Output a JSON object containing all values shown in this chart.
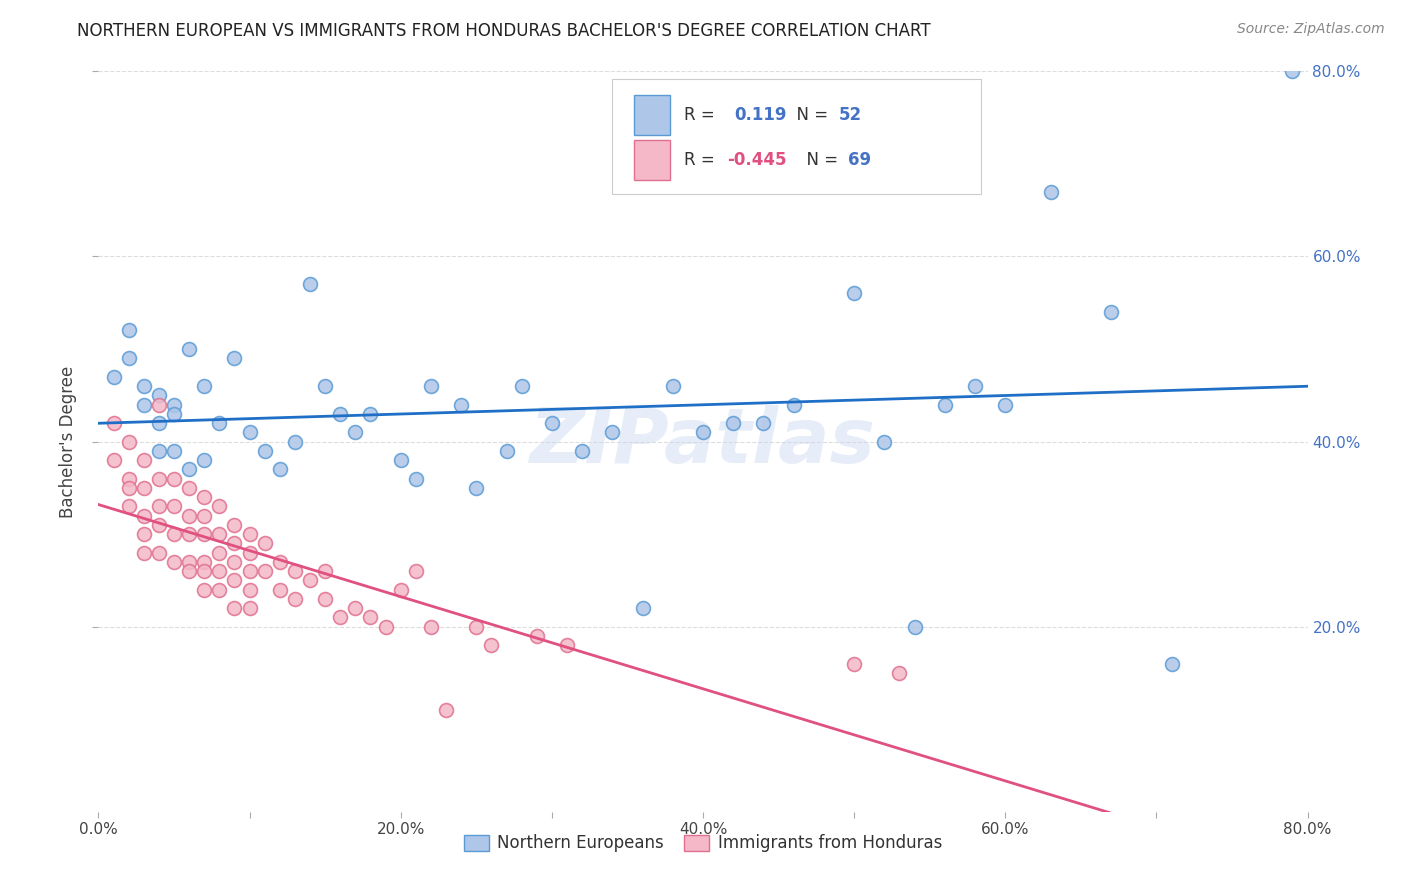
{
  "title": "NORTHERN EUROPEAN VS IMMIGRANTS FROM HONDURAS BACHELOR'S DEGREE CORRELATION CHART",
  "source": "Source: ZipAtlas.com",
  "ylabel": "Bachelor's Degree",
  "watermark": "ZIPatlas",
  "xlim": [
    0.0,
    0.8
  ],
  "ylim": [
    0.0,
    0.8
  ],
  "xtick_labels": [
    "0.0%",
    "",
    "20.0%",
    "",
    "40.0%",
    "",
    "60.0%",
    "",
    "80.0%"
  ],
  "xtick_vals": [
    0.0,
    0.1,
    0.2,
    0.3,
    0.4,
    0.5,
    0.6,
    0.7,
    0.8
  ],
  "ytick_labels": [
    "20.0%",
    "40.0%",
    "60.0%",
    "80.0%"
  ],
  "ytick_vals": [
    0.2,
    0.4,
    0.6,
    0.8
  ],
  "series1_color": "#aec6e8",
  "series1_edge_color": "#5b9bd5",
  "series2_color": "#f4b8c8",
  "series2_edge_color": "#e07090",
  "trend1_color": "#1f6fc6",
  "trend2_color": "#e05080",
  "legend_label1": "Northern Europeans",
  "legend_label2": "Immigrants from Honduras",
  "R1": 0.119,
  "N1": 52,
  "R2": -0.445,
  "N2": 69,
  "series1_x": [
    0.01,
    0.02,
    0.02,
    0.03,
    0.03,
    0.04,
    0.04,
    0.04,
    0.05,
    0.05,
    0.05,
    0.06,
    0.06,
    0.07,
    0.07,
    0.08,
    0.09,
    0.1,
    0.11,
    0.12,
    0.13,
    0.14,
    0.15,
    0.16,
    0.17,
    0.18,
    0.2,
    0.21,
    0.22,
    0.24,
    0.25,
    0.27,
    0.28,
    0.3,
    0.32,
    0.34,
    0.36,
    0.38,
    0.4,
    0.42,
    0.44,
    0.46,
    0.5,
    0.52,
    0.54,
    0.56,
    0.58,
    0.6,
    0.63,
    0.67,
    0.71,
    0.79
  ],
  "series1_y": [
    0.47,
    0.52,
    0.49,
    0.46,
    0.44,
    0.45,
    0.42,
    0.39,
    0.44,
    0.43,
    0.39,
    0.5,
    0.37,
    0.46,
    0.38,
    0.42,
    0.49,
    0.41,
    0.39,
    0.37,
    0.4,
    0.57,
    0.46,
    0.43,
    0.41,
    0.43,
    0.38,
    0.36,
    0.46,
    0.44,
    0.35,
    0.39,
    0.46,
    0.42,
    0.39,
    0.41,
    0.22,
    0.46,
    0.41,
    0.42,
    0.42,
    0.44,
    0.56,
    0.4,
    0.2,
    0.44,
    0.46,
    0.44,
    0.67,
    0.54,
    0.16,
    0.8
  ],
  "series2_x": [
    0.01,
    0.01,
    0.02,
    0.02,
    0.02,
    0.02,
    0.03,
    0.03,
    0.03,
    0.03,
    0.03,
    0.04,
    0.04,
    0.04,
    0.04,
    0.04,
    0.05,
    0.05,
    0.05,
    0.05,
    0.06,
    0.06,
    0.06,
    0.06,
    0.06,
    0.07,
    0.07,
    0.07,
    0.07,
    0.07,
    0.07,
    0.08,
    0.08,
    0.08,
    0.08,
    0.08,
    0.09,
    0.09,
    0.09,
    0.09,
    0.09,
    0.1,
    0.1,
    0.1,
    0.1,
    0.1,
    0.11,
    0.11,
    0.12,
    0.12,
    0.13,
    0.13,
    0.14,
    0.15,
    0.15,
    0.16,
    0.17,
    0.18,
    0.19,
    0.2,
    0.21,
    0.22,
    0.23,
    0.25,
    0.26,
    0.29,
    0.31,
    0.5,
    0.53
  ],
  "series2_y": [
    0.42,
    0.38,
    0.4,
    0.36,
    0.35,
    0.33,
    0.38,
    0.35,
    0.32,
    0.3,
    0.28,
    0.44,
    0.36,
    0.33,
    0.31,
    0.28,
    0.36,
    0.33,
    0.3,
    0.27,
    0.35,
    0.32,
    0.3,
    0.27,
    0.26,
    0.34,
    0.32,
    0.3,
    0.27,
    0.26,
    0.24,
    0.33,
    0.3,
    0.28,
    0.26,
    0.24,
    0.31,
    0.29,
    0.27,
    0.25,
    0.22,
    0.3,
    0.28,
    0.26,
    0.24,
    0.22,
    0.29,
    0.26,
    0.27,
    0.24,
    0.26,
    0.23,
    0.25,
    0.26,
    0.23,
    0.21,
    0.22,
    0.21,
    0.2,
    0.24,
    0.26,
    0.2,
    0.11,
    0.2,
    0.18,
    0.19,
    0.18,
    0.16,
    0.15
  ],
  "background_color": "#ffffff",
  "grid_color": "#dddddd",
  "marker_size": 100,
  "marker_linewidth": 1.2
}
